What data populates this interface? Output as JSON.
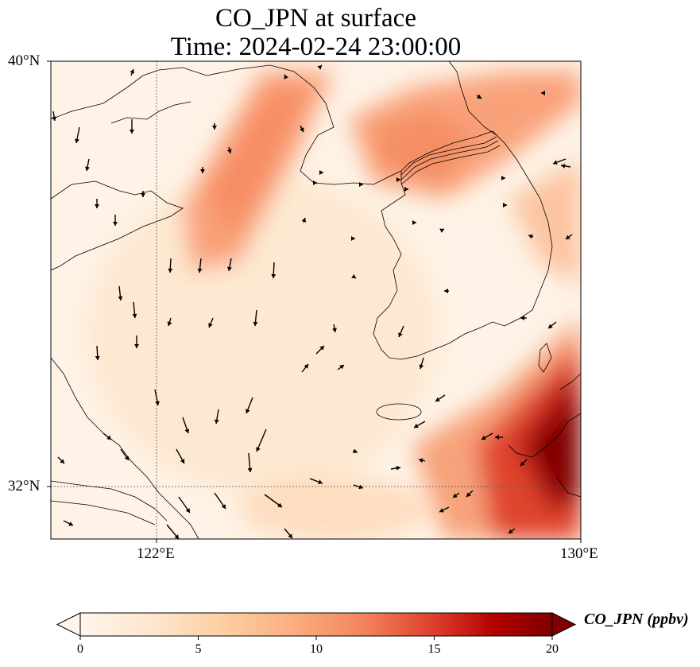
{
  "title_line1": "CO_JPN at surface",
  "title_line2": "Time: 2024-02-24 23:00:00",
  "lat_labels": [
    "40°N",
    "32°N"
  ],
  "lon_labels": [
    "122°E",
    "130°E"
  ],
  "colorbar": {
    "label": "CO_JPN (ppbv)",
    "ticks": [
      "0",
      "5",
      "10",
      "15",
      "20"
    ],
    "colors": [
      "#fff5eb",
      "#fee6ce",
      "#fdd0a2",
      "#fdae6b",
      "#fd8d3c",
      "#f16913",
      "#d94801",
      "#a50000",
      "#7f0000"
    ]
  },
  "colormap_name": "OrRd-like",
  "extent": {
    "lon_min": 120,
    "lon_max": 130,
    "lat_min": 31,
    "lat_max": 40
  },
  "gridlines": {
    "lon": 122,
    "lat": 32
  }
}
